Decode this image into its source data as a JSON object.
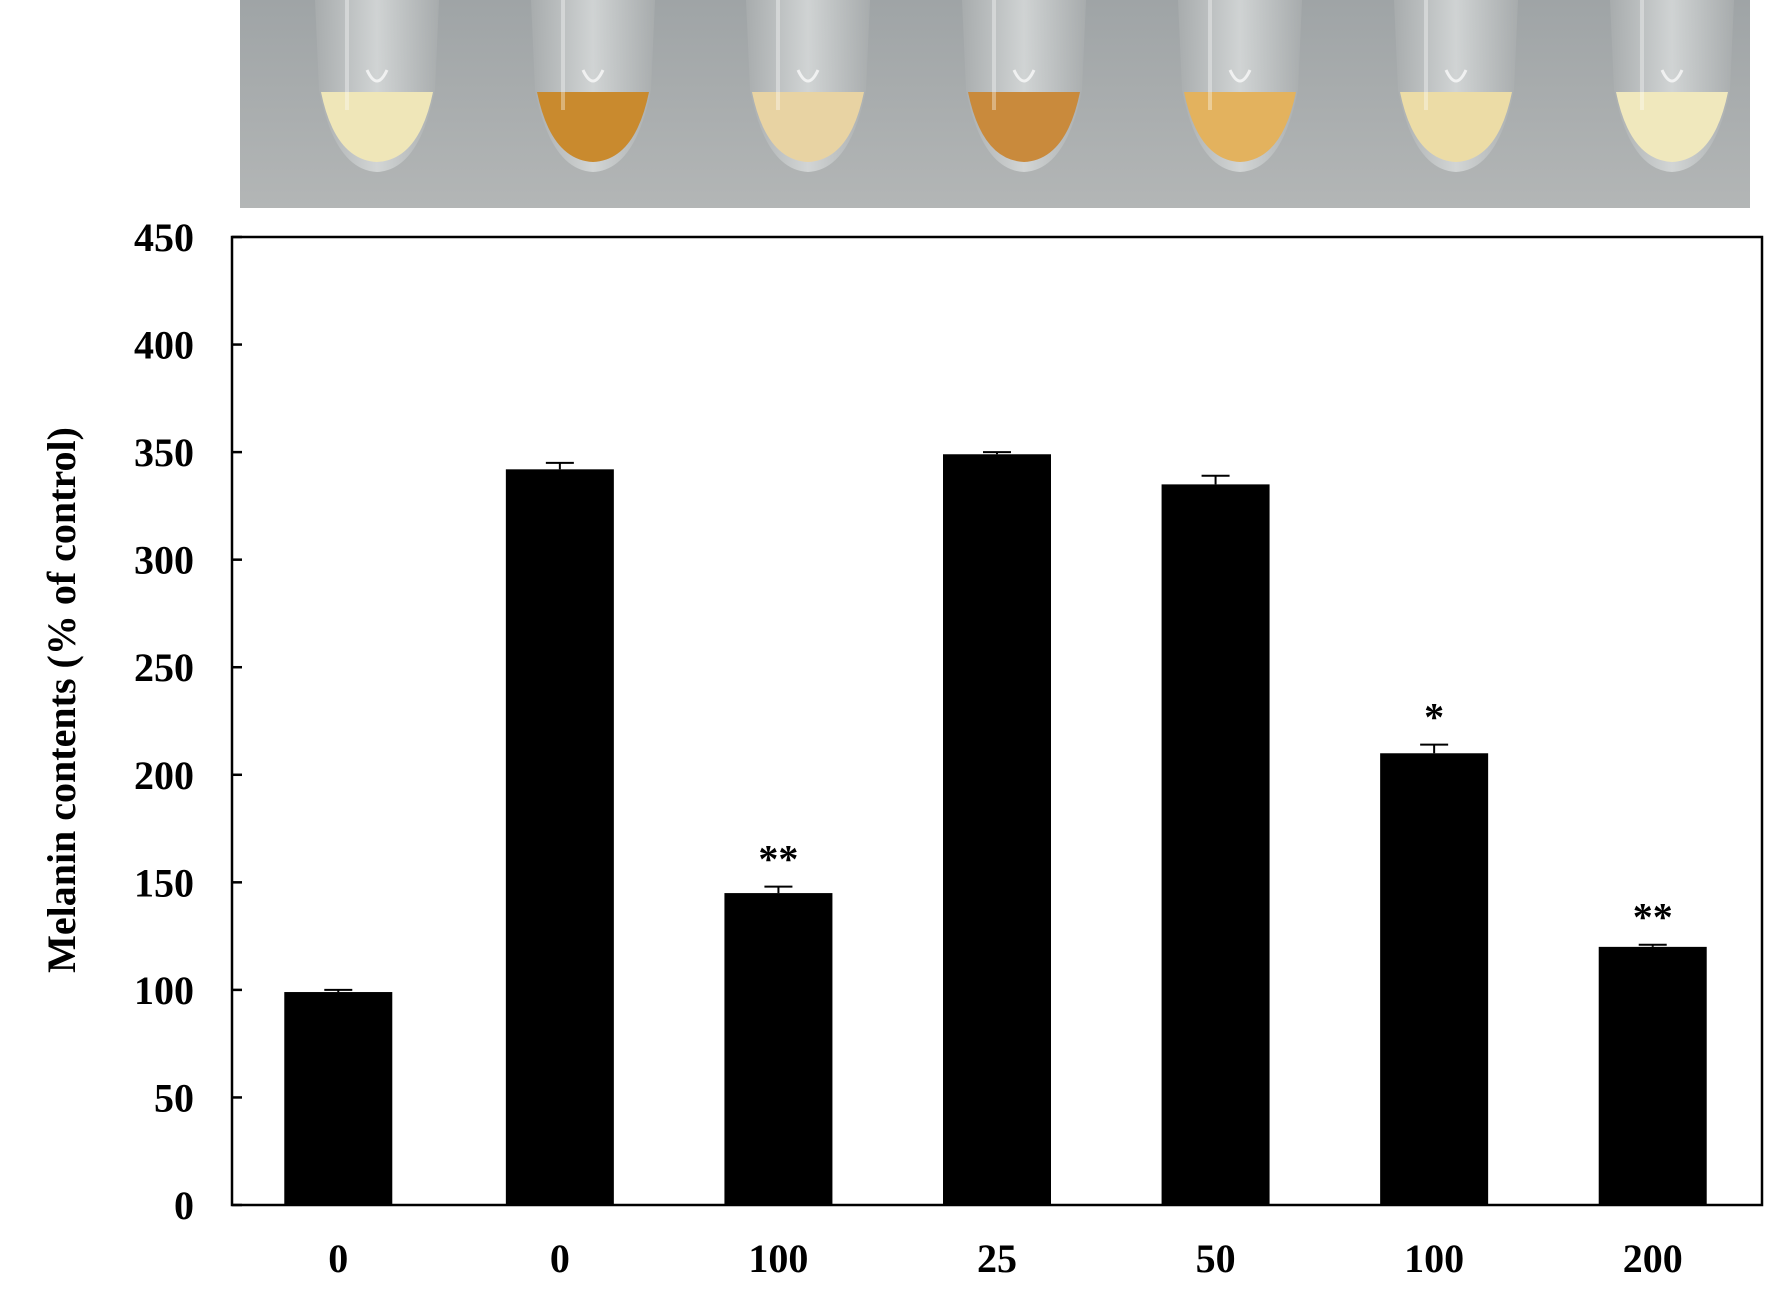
{
  "chart_data": {
    "type": "bar",
    "categories": [
      "0",
      "0",
      "100",
      "25",
      "50",
      "100",
      "200"
    ],
    "values": [
      99,
      342,
      145,
      349,
      335,
      210,
      120
    ],
    "errors": [
      1,
      3,
      3,
      1,
      4,
      4,
      1
    ],
    "significance": [
      "",
      "",
      "**",
      "",
      "",
      "*",
      "**"
    ],
    "ylabel": "Melanin contents  (% of control)",
    "xlabel": "",
    "ylim": [
      0,
      450
    ],
    "yticks": [
      0,
      50,
      100,
      150,
      200,
      250,
      300,
      350,
      400,
      450
    ],
    "grid": false,
    "bar_color": "#000000"
  },
  "photo": {
    "tube_colors": [
      "#efe6b8",
      "#c98a2e",
      "#e8d3a3",
      "#c98a3c",
      "#e3b25e",
      "#ecdca6",
      "#f0e8bd"
    ]
  }
}
